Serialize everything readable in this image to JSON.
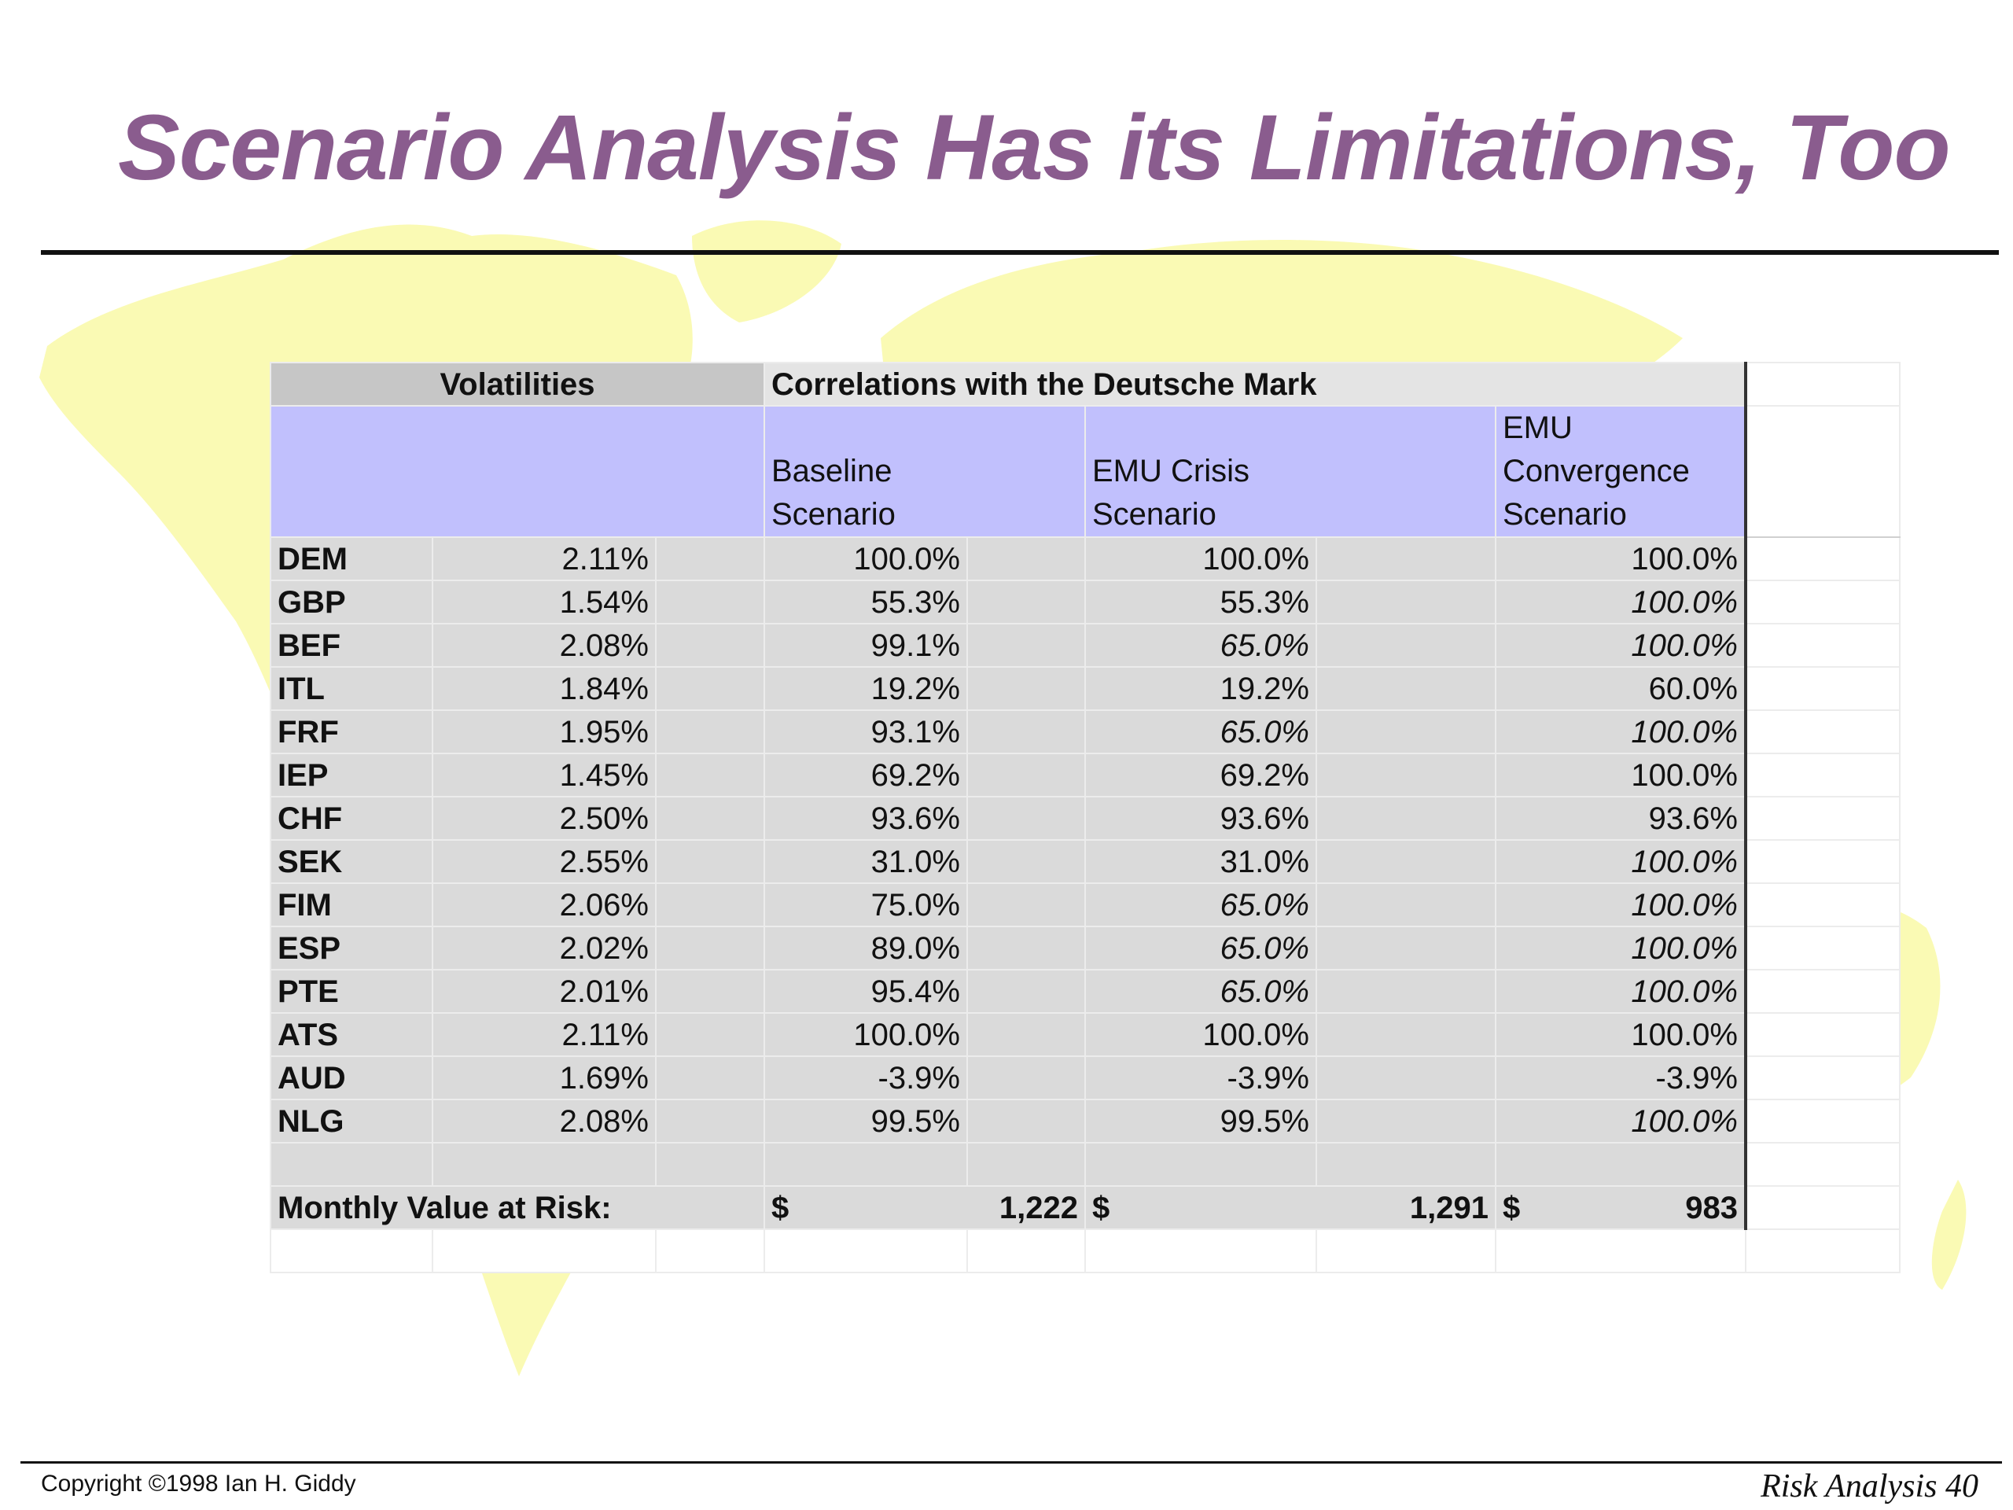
{
  "slide": {
    "title": "Scenario Analysis Has its Limitations, Too",
    "copyright": "Copyright ©1998 Ian H. Giddy",
    "page_ref": "Risk Analysis 40"
  },
  "table": {
    "header_volatilities": "Volatilities",
    "header_correlations": "Correlations with the Deutsche Mark",
    "scenarios": [
      {
        "lines": [
          "",
          "Baseline",
          "Scenario"
        ]
      },
      {
        "lines": [
          "",
          "EMU Crisis",
          "Scenario"
        ]
      },
      {
        "lines": [
          "EMU",
          "Convergence",
          "Scenario"
        ]
      }
    ],
    "rows": [
      {
        "code": "DEM",
        "vol": "2.11%",
        "base": "100.0%",
        "crisis": "100.0%",
        "crisis_italic": false,
        "conv": "100.0%",
        "conv_italic": false
      },
      {
        "code": "GBP",
        "vol": "1.54%",
        "base": "55.3%",
        "crisis": "55.3%",
        "crisis_italic": false,
        "conv": "100.0%",
        "conv_italic": true
      },
      {
        "code": "BEF",
        "vol": "2.08%",
        "base": "99.1%",
        "crisis": "65.0%",
        "crisis_italic": true,
        "conv": "100.0%",
        "conv_italic": true
      },
      {
        "code": "ITL",
        "vol": "1.84%",
        "base": "19.2%",
        "crisis": "19.2%",
        "crisis_italic": false,
        "conv": "60.0%",
        "conv_italic": false
      },
      {
        "code": "FRF",
        "vol": "1.95%",
        "base": "93.1%",
        "crisis": "65.0%",
        "crisis_italic": true,
        "conv": "100.0%",
        "conv_italic": true
      },
      {
        "code": "IEP",
        "vol": "1.45%",
        "base": "69.2%",
        "crisis": "69.2%",
        "crisis_italic": false,
        "conv": "100.0%",
        "conv_italic": false
      },
      {
        "code": "CHF",
        "vol": "2.50%",
        "base": "93.6%",
        "crisis": "93.6%",
        "crisis_italic": false,
        "conv": "93.6%",
        "conv_italic": false
      },
      {
        "code": "SEK",
        "vol": "2.55%",
        "base": "31.0%",
        "crisis": "31.0%",
        "crisis_italic": false,
        "conv": "100.0%",
        "conv_italic": true
      },
      {
        "code": "FIM",
        "vol": "2.06%",
        "base": "75.0%",
        "crisis": "65.0%",
        "crisis_italic": true,
        "conv": "100.0%",
        "conv_italic": true
      },
      {
        "code": "ESP",
        "vol": "2.02%",
        "base": "89.0%",
        "crisis": "65.0%",
        "crisis_italic": true,
        "conv": "100.0%",
        "conv_italic": true
      },
      {
        "code": "PTE",
        "vol": "2.01%",
        "base": "95.4%",
        "crisis": "65.0%",
        "crisis_italic": true,
        "conv": "100.0%",
        "conv_italic": true
      },
      {
        "code": "ATS",
        "vol": "2.11%",
        "base": "100.0%",
        "crisis": "100.0%",
        "crisis_italic": false,
        "conv": "100.0%",
        "conv_italic": false
      },
      {
        "code": "AUD",
        "vol": "1.69%",
        "base": "-3.9%",
        "crisis": "-3.9%",
        "crisis_italic": false,
        "conv": "-3.9%",
        "conv_italic": false
      },
      {
        "code": "NLG",
        "vol": "2.08%",
        "base": "99.5%",
        "crisis": "99.5%",
        "crisis_italic": false,
        "conv": "100.0%",
        "conv_italic": true
      }
    ],
    "var": {
      "label": "Monthly Value at Risk:",
      "currency": "$",
      "base": "1,222",
      "crisis": "1,291",
      "conv": "983"
    }
  },
  "colors": {
    "title": "#8a5c8e",
    "scenario_header_bg": "#c1c0fd",
    "cell_bg": "#dadada",
    "map": "#fafab4"
  }
}
